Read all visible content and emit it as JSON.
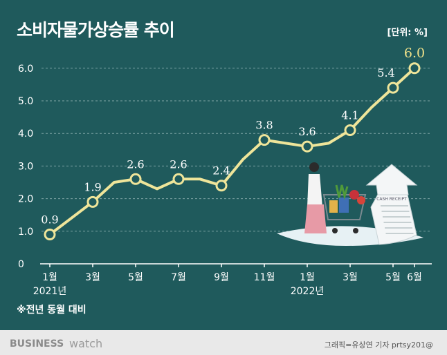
{
  "title": "소비자물가상승률 추이",
  "unit_label": "[단위: %]",
  "note": "※전년 동월 대비",
  "footer": {
    "brand_main": "BUSINESS",
    "brand_sub": "watch",
    "credit": "그래픽=유상연 기자 prtsy201@"
  },
  "colors": {
    "background": "#1f5a5c",
    "line": "#efe59a",
    "highlight_label": "#f1e28a",
    "grid": "#7fa4a4"
  },
  "chart_data": {
    "type": "line",
    "title": "소비자물가상승률 추이",
    "xlabel": "",
    "ylabel": "",
    "ylim": [
      0,
      6.0
    ],
    "yticks": [
      "0",
      "1.0",
      "2.0",
      "3.0",
      "4.0",
      "5.0",
      "6.0"
    ],
    "grid": true,
    "x": [
      "2021-01",
      "2021-02",
      "2021-03",
      "2021-04",
      "2021-05",
      "2021-06",
      "2021-07",
      "2021-08",
      "2021-09",
      "2021-10",
      "2021-11",
      "2021-12",
      "2022-01",
      "2022-02",
      "2022-03",
      "2022-04",
      "2022-05",
      "2022-06"
    ],
    "values": [
      0.9,
      1.4,
      1.9,
      2.5,
      2.6,
      2.3,
      2.6,
      2.6,
      2.4,
      3.2,
      3.8,
      3.7,
      3.6,
      3.7,
      4.1,
      4.8,
      5.4,
      6.0
    ],
    "point_labels": [
      {
        "i": 0,
        "label": "0.9"
      },
      {
        "i": 2,
        "label": "1.9"
      },
      {
        "i": 4,
        "label": "2.6"
      },
      {
        "i": 6,
        "label": "2.6"
      },
      {
        "i": 8,
        "label": "2.4"
      },
      {
        "i": 10,
        "label": "3.8"
      },
      {
        "i": 12,
        "label": "3.6"
      },
      {
        "i": 14,
        "label": "4.1"
      },
      {
        "i": 16,
        "label": "5.4"
      },
      {
        "i": 17,
        "label": "6.0"
      }
    ],
    "xtick_labels": [
      {
        "i": 0,
        "label": "1월"
      },
      {
        "i": 2,
        "label": "3월"
      },
      {
        "i": 4,
        "label": "5월"
      },
      {
        "i": 6,
        "label": "7월"
      },
      {
        "i": 8,
        "label": "9월"
      },
      {
        "i": 10,
        "label": "11월"
      },
      {
        "i": 12,
        "label": "1월"
      },
      {
        "i": 14,
        "label": "3월"
      },
      {
        "i": 16,
        "label": "5월"
      },
      {
        "i": 17,
        "label": "6월"
      }
    ],
    "year_labels": [
      {
        "i": 0,
        "label": "2021년"
      },
      {
        "i": 12,
        "label": "2022년"
      }
    ],
    "illustration_text": "CASH RECEIPT"
  }
}
